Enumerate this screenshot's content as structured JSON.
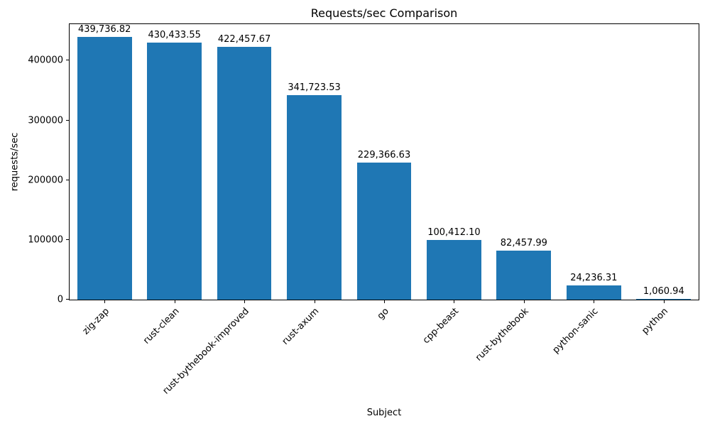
{
  "chart_data": {
    "type": "bar",
    "title": "Requests/sec Comparison",
    "xlabel": "Subject",
    "ylabel": "requests/sec",
    "categories": [
      "zig-zap",
      "rust-clean",
      "rust-bythebook-improved",
      "rust-axum",
      "go",
      "cpp-beast",
      "rust-bythebook",
      "python-sanic",
      "python"
    ],
    "values": [
      439736.82,
      430433.55,
      422457.67,
      341723.53,
      229366.63,
      100412.1,
      82457.99,
      24236.31,
      1060.94
    ],
    "value_labels": [
      "439,736.82",
      "430,433.55",
      "422,457.67",
      "341,723.53",
      "229,366.63",
      "100,412.10",
      "82,457.99",
      "24,236.31",
      "1,060.94"
    ],
    "yticks": [
      0,
      100000,
      200000,
      300000,
      400000
    ],
    "ylim": [
      0,
      461000
    ],
    "bar_color": "#1f77b4",
    "grid": false,
    "legend_position": "none"
  }
}
